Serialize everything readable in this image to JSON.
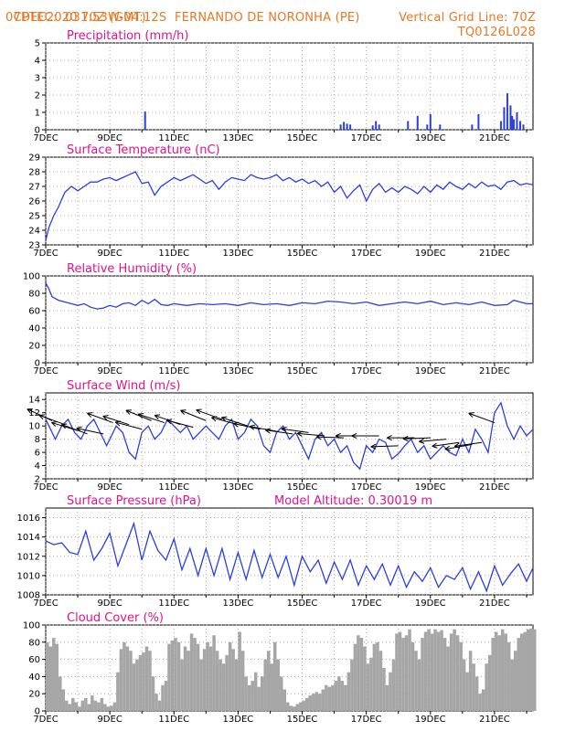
{
  "header": {
    "source": "CPTEC:",
    "coords": "031:53W-04:12S",
    "station": "FERNANDO DE NORONHA (PE)",
    "run": "07DEC2020 70Z (GMT)",
    "grid_line": "Vertical Grid Line: 70Z",
    "code": "TQ0126L028"
  },
  "colors": {
    "header": "#e87722",
    "title": "#e0138c",
    "line": "#2a3fe0",
    "cloud": "#a6a6a6",
    "wind": "#000000"
  },
  "chart_data": [
    {
      "id": "precip",
      "type": "bar",
      "title": "Precipitation (mm/h)",
      "x_tick_labels": [
        "7DEC",
        "9DEC",
        "11DEC",
        "13DEC",
        "15DEC",
        "17DEC",
        "19DEC",
        "21DEC"
      ],
      "x_range_days": [
        7,
        22.2
      ],
      "ylim": [
        0,
        5
      ],
      "yticks": [
        0,
        1,
        2,
        3,
        4,
        5
      ],
      "color": "#2a3fe0",
      "x": [
        10.1,
        16.2,
        16.3,
        16.4,
        16.5,
        17.2,
        17.3,
        17.4,
        18.3,
        18.6,
        18.9,
        19.0,
        19.3,
        20.3,
        20.5,
        21.2,
        21.3,
        21.4,
        21.5,
        21.55,
        21.6,
        21.7,
        21.8,
        21.9
      ],
      "values": [
        1.05,
        0.3,
        0.45,
        0.35,
        0.3,
        0.25,
        0.5,
        0.3,
        0.5,
        0.8,
        0.3,
        0.9,
        0.3,
        0.3,
        0.9,
        0.5,
        1.3,
        2.1,
        1.4,
        0.8,
        0.6,
        1.0,
        0.5,
        0.3
      ]
    },
    {
      "id": "temp",
      "type": "line",
      "title": "Surface Temperature (nC)",
      "x_tick_labels": [
        "7DEC",
        "9DEC",
        "11DEC",
        "13DEC",
        "15DEC",
        "17DEC",
        "19DEC",
        "21DEC"
      ],
      "x_range_days": [
        7,
        22.2
      ],
      "ylim": [
        23,
        29
      ],
      "yticks": [
        23,
        24,
        25,
        26,
        27,
        28,
        29
      ],
      "color": "#2a3fe0",
      "x": [
        7.0,
        7.1,
        7.25,
        7.4,
        7.6,
        7.8,
        8.0,
        8.2,
        8.4,
        8.6,
        8.8,
        9.0,
        9.2,
        9.4,
        9.6,
        9.8,
        10.0,
        10.2,
        10.4,
        10.6,
        10.8,
        11.0,
        11.2,
        11.4,
        11.6,
        11.8,
        12.0,
        12.2,
        12.4,
        12.6,
        12.8,
        13.0,
        13.2,
        13.4,
        13.6,
        13.8,
        14.0,
        14.2,
        14.4,
        14.6,
        14.8,
        15.0,
        15.2,
        15.4,
        15.6,
        15.8,
        16.0,
        16.2,
        16.4,
        16.6,
        16.8,
        17.0,
        17.2,
        17.4,
        17.6,
        17.8,
        18.0,
        18.2,
        18.4,
        18.6,
        18.8,
        19.0,
        19.2,
        19.4,
        19.6,
        19.8,
        20.0,
        20.2,
        20.4,
        20.6,
        20.8,
        21.0,
        21.2,
        21.4,
        21.6,
        21.8,
        22.0,
        22.2
      ],
      "values": [
        23.3,
        24.2,
        25.0,
        25.6,
        26.6,
        27.0,
        26.7,
        27.0,
        27.3,
        27.3,
        27.5,
        27.6,
        27.4,
        27.6,
        27.8,
        28.0,
        27.2,
        27.3,
        26.4,
        27.0,
        27.3,
        27.6,
        27.4,
        27.6,
        27.8,
        27.5,
        27.2,
        27.4,
        26.8,
        27.3,
        27.6,
        27.5,
        27.4,
        27.8,
        27.6,
        27.5,
        27.6,
        27.8,
        27.4,
        27.6,
        27.3,
        27.5,
        27.2,
        27.4,
        27.0,
        27.3,
        26.6,
        27.0,
        26.2,
        26.7,
        27.1,
        26.0,
        26.8,
        27.2,
        26.6,
        26.9,
        26.6,
        27.0,
        26.8,
        26.5,
        27.0,
        26.6,
        27.1,
        26.8,
        27.3,
        27.0,
        26.8,
        27.2,
        26.9,
        27.3,
        27.0,
        27.1,
        26.8,
        27.3,
        27.4,
        27.1,
        27.2,
        27.1
      ]
    },
    {
      "id": "rh",
      "type": "line",
      "title": "Relative Humidity (%)",
      "x_tick_labels": [
        "7DEC",
        "9DEC",
        "11DEC",
        "13DEC",
        "15DEC",
        "17DEC",
        "19DEC",
        "21DEC"
      ],
      "x_range_days": [
        7,
        22.2
      ],
      "ylim": [
        0,
        100
      ],
      "yticks": [
        0,
        20,
        40,
        60,
        80,
        100
      ],
      "color": "#2a3fe0",
      "x": [
        7.0,
        7.1,
        7.2,
        7.4,
        7.6,
        7.8,
        8.0,
        8.2,
        8.4,
        8.6,
        8.8,
        9.0,
        9.2,
        9.4,
        9.6,
        9.8,
        10.0,
        10.2,
        10.4,
        10.6,
        10.8,
        11.0,
        11.4,
        11.8,
        12.2,
        12.6,
        13.0,
        13.4,
        13.8,
        14.2,
        14.6,
        15.0,
        15.4,
        15.8,
        16.2,
        16.6,
        17.0,
        17.4,
        17.8,
        18.2,
        18.6,
        19.0,
        19.4,
        19.8,
        20.2,
        20.6,
        21.0,
        21.4,
        21.6,
        21.8,
        22.0,
        22.2
      ],
      "values": [
        92,
        85,
        76,
        72,
        70,
        68,
        66,
        68,
        64,
        62,
        63,
        66,
        64,
        68,
        69,
        66,
        72,
        68,
        73,
        67,
        66,
        68,
        66,
        68,
        67,
        68,
        66,
        69,
        67,
        68,
        66,
        69,
        68,
        71,
        70,
        68,
        70,
        66,
        68,
        70,
        68,
        71,
        67,
        69,
        67,
        70,
        66,
        67,
        72,
        70,
        68,
        68
      ]
    },
    {
      "id": "wind",
      "type": "line",
      "title": "Surface Wind (m/s)",
      "x_tick_labels": [
        "7DEC",
        "9DEC",
        "11DEC",
        "13DEC",
        "15DEC",
        "17DEC",
        "19DEC",
        "21DEC"
      ],
      "x_range_days": [
        7,
        22.2
      ],
      "ylim": [
        2,
        15
      ],
      "yticks": [
        2,
        4,
        6,
        8,
        10,
        12,
        14
      ],
      "color": "#2a3fe0",
      "x": [
        7.0,
        7.1,
        7.3,
        7.5,
        7.7,
        7.9,
        8.1,
        8.3,
        8.5,
        8.7,
        8.9,
        9.0,
        9.2,
        9.4,
        9.6,
        9.8,
        10.0,
        10.2,
        10.4,
        10.6,
        10.8,
        11.0,
        11.2,
        11.4,
        11.6,
        11.8,
        12.0,
        12.2,
        12.4,
        12.6,
        12.8,
        13.0,
        13.2,
        13.4,
        13.6,
        13.8,
        14.0,
        14.2,
        14.4,
        14.6,
        14.8,
        15.0,
        15.2,
        15.4,
        15.6,
        15.8,
        16.0,
        16.2,
        16.4,
        16.6,
        16.8,
        17.0,
        17.2,
        17.4,
        17.6,
        17.8,
        18.0,
        18.2,
        18.4,
        18.6,
        18.8,
        19.0,
        19.2,
        19.4,
        19.6,
        19.8,
        20.0,
        20.2,
        20.4,
        20.6,
        20.8,
        21.0,
        21.2,
        21.4,
        21.6,
        21.8,
        22.0,
        22.2
      ],
      "values": [
        11,
        10,
        8,
        10,
        11,
        9,
        8,
        10,
        11,
        9,
        7,
        8,
        10,
        9,
        6,
        5,
        9,
        10,
        8,
        9,
        11,
        10,
        9,
        10,
        8,
        9,
        10,
        9,
        8,
        10,
        11,
        8,
        9,
        11,
        10,
        7,
        6,
        9,
        10,
        8,
        9,
        7,
        5,
        8,
        9,
        7,
        8,
        6,
        7,
        4.5,
        3.5,
        7,
        6,
        8,
        7.5,
        5,
        5.8,
        7,
        8,
        6,
        7,
        5,
        6,
        7,
        6,
        5.5,
        8,
        6,
        9.5,
        8,
        6,
        12,
        13.5,
        10,
        8,
        10,
        8.5,
        9.5
      ],
      "arrows": [
        {
          "x": 7.2,
          "y": 10.8,
          "dir": 155
        },
        {
          "x": 7.6,
          "y": 10.2,
          "dir": 160
        },
        {
          "x": 8.0,
          "y": 9.3,
          "dir": 163
        },
        {
          "x": 8.3,
          "y": 8.8,
          "dir": 160
        },
        {
          "x": 8.8,
          "y": 8.8,
          "dir": 168
        },
        {
          "x": 9.1,
          "y": 10.5,
          "dir": 160
        },
        {
          "x": 9.6,
          "y": 10.2,
          "dir": 162
        },
        {
          "x": 10.0,
          "y": 9.5,
          "dir": 165
        },
        {
          "x": 10.3,
          "y": 10.8,
          "dir": 158
        },
        {
          "x": 10.7,
          "y": 10.5,
          "dir": 162
        },
        {
          "x": 11.2,
          "y": 10.2,
          "dir": 160
        },
        {
          "x": 11.6,
          "y": 9.8,
          "dir": 165
        },
        {
          "x": 12.0,
          "y": 10.8,
          "dir": 158
        },
        {
          "x": 12.5,
          "y": 11.0,
          "dir": 160
        },
        {
          "x": 13.0,
          "y": 10.2,
          "dir": 165
        },
        {
          "x": 13.3,
          "y": 10.0,
          "dir": 162
        },
        {
          "x": 13.7,
          "y": 9.5,
          "dir": 168
        },
        {
          "x": 14.2,
          "y": 9.2,
          "dir": 170
        },
        {
          "x": 14.7,
          "y": 8.8,
          "dir": 172
        },
        {
          "x": 15.2,
          "y": 9.0,
          "dir": 172
        },
        {
          "x": 15.7,
          "y": 8.5,
          "dir": 175
        },
        {
          "x": 16.3,
          "y": 8.2,
          "dir": 178
        },
        {
          "x": 16.9,
          "y": 8.5,
          "dir": 180
        },
        {
          "x": 17.4,
          "y": 8.5,
          "dir": 180
        },
        {
          "x": 18.0,
          "y": 7.0,
          "dir": 182
        },
        {
          "x": 18.5,
          "y": 8.2,
          "dir": 180
        },
        {
          "x": 19.0,
          "y": 8.2,
          "dir": 182
        },
        {
          "x": 19.5,
          "y": 8.0,
          "dir": 185
        },
        {
          "x": 19.9,
          "y": 7.5,
          "dir": 188
        },
        {
          "x": 20.3,
          "y": 7.2,
          "dir": 190
        },
        {
          "x": 20.6,
          "y": 7.5,
          "dir": 188
        },
        {
          "x": 21.0,
          "y": 10.5,
          "dir": 160
        }
      ]
    },
    {
      "id": "press",
      "type": "line",
      "title": "Surface Pressure (hPa)",
      "annotation": "Model Altitude: 0.30019 m",
      "x_tick_labels": [
        "7DEC",
        "9DEC",
        "11DEC",
        "13DEC",
        "15DEC",
        "17DEC",
        "19DEC",
        "21DEC"
      ],
      "x_range_days": [
        7,
        22.2
      ],
      "ylim": [
        1008,
        1017
      ],
      "yticks": [
        1008,
        1010,
        1012,
        1014,
        1016
      ],
      "color": "#2a3fe0",
      "x": [
        7.0,
        7.25,
        7.5,
        7.75,
        8.0,
        8.25,
        8.5,
        8.75,
        9.0,
        9.25,
        9.5,
        9.75,
        10.0,
        10.25,
        10.5,
        10.75,
        11.0,
        11.25,
        11.5,
        11.75,
        12.0,
        12.25,
        12.5,
        12.75,
        13.0,
        13.25,
        13.5,
        13.75,
        14.0,
        14.25,
        14.5,
        14.75,
        15.0,
        15.25,
        15.5,
        15.75,
        16.0,
        16.25,
        16.5,
        16.75,
        17.0,
        17.25,
        17.5,
        17.75,
        18.0,
        18.25,
        18.5,
        18.75,
        19.0,
        19.25,
        19.5,
        19.75,
        20.0,
        20.25,
        20.5,
        20.75,
        21.0,
        21.25,
        21.5,
        21.75,
        22.0,
        22.2
      ],
      "values": [
        1013.6,
        1013.2,
        1013.4,
        1012.4,
        1012.2,
        1014.6,
        1011.6,
        1012.8,
        1014.4,
        1011.0,
        1013.2,
        1015.4,
        1011.6,
        1014.6,
        1012.6,
        1011.6,
        1013.8,
        1010.6,
        1012.8,
        1010.0,
        1012.8,
        1010.0,
        1012.8,
        1009.6,
        1012.4,
        1009.6,
        1012.6,
        1009.8,
        1012.2,
        1009.8,
        1012.0,
        1009.0,
        1012.0,
        1010.4,
        1011.6,
        1009.2,
        1011.4,
        1009.6,
        1011.6,
        1009.0,
        1011.0,
        1009.6,
        1011.2,
        1009.0,
        1011.0,
        1008.8,
        1010.4,
        1009.4,
        1010.8,
        1008.8,
        1010.0,
        1009.6,
        1010.8,
        1008.6,
        1010.4,
        1008.4,
        1011.0,
        1009.0,
        1010.2,
        1011.2,
        1009.4,
        1010.8
      ]
    },
    {
      "id": "cloud",
      "type": "area",
      "title": "Cloud Cover (%)",
      "x_tick_labels": [
        "7DEC",
        "9DEC",
        "11DEC",
        "13DEC",
        "15DEC",
        "17DEC",
        "19DEC",
        "21DEC"
      ],
      "x_range_days": [
        7,
        22.2
      ],
      "ylim": [
        0,
        100
      ],
      "yticks": [
        0,
        20,
        40,
        60,
        80,
        100
      ],
      "color": "#a6a6a6",
      "x": [
        7.0,
        7.1,
        7.2,
        7.3,
        7.4,
        7.5,
        7.6,
        7.7,
        7.8,
        7.9,
        8.0,
        8.1,
        8.2,
        8.3,
        8.4,
        8.5,
        8.6,
        8.7,
        8.8,
        8.9,
        9.0,
        9.1,
        9.2,
        9.3,
        9.4,
        9.5,
        9.6,
        9.7,
        9.8,
        9.9,
        10.0,
        10.1,
        10.2,
        10.3,
        10.4,
        10.5,
        10.6,
        10.7,
        10.8,
        10.9,
        11.0,
        11.1,
        11.2,
        11.3,
        11.4,
        11.5,
        11.6,
        11.7,
        11.8,
        11.9,
        12.0,
        12.1,
        12.2,
        12.3,
        12.4,
        12.5,
        12.6,
        12.7,
        12.8,
        12.9,
        13.0,
        13.1,
        13.2,
        13.3,
        13.4,
        13.5,
        13.6,
        13.7,
        13.8,
        13.9,
        14.0,
        14.1,
        14.2,
        14.3,
        14.4,
        14.5,
        14.6,
        14.7,
        14.8,
        14.9,
        15.0,
        15.1,
        15.2,
        15.3,
        15.4,
        15.5,
        15.6,
        15.7,
        15.8,
        15.9,
        16.0,
        16.1,
        16.2,
        16.3,
        16.4,
        16.5,
        16.6,
        16.7,
        16.8,
        16.9,
        17.0,
        17.1,
        17.2,
        17.3,
        17.4,
        17.5,
        17.6,
        17.7,
        17.8,
        17.9,
        18.0,
        18.1,
        18.2,
        18.3,
        18.4,
        18.5,
        18.6,
        18.7,
        18.8,
        18.9,
        19.0,
        19.1,
        19.2,
        19.3,
        19.4,
        19.5,
        19.6,
        19.7,
        19.8,
        19.9,
        20.0,
        20.1,
        20.2,
        20.3,
        20.4,
        20.5,
        20.6,
        20.7,
        20.8,
        20.9,
        21.0,
        21.1,
        21.2,
        21.3,
        21.4,
        21.5,
        21.6,
        21.7,
        21.8,
        21.9,
        22.0,
        22.1,
        22.2
      ],
      "values": [
        80,
        75,
        85,
        78,
        40,
        25,
        12,
        8,
        15,
        10,
        5,
        12,
        15,
        8,
        18,
        12,
        10,
        15,
        8,
        5,
        6,
        10,
        45,
        72,
        80,
        75,
        70,
        55,
        60,
        65,
        68,
        75,
        70,
        40,
        20,
        12,
        30,
        35,
        78,
        82,
        85,
        80,
        60,
        75,
        70,
        90,
        85,
        78,
        60,
        72,
        80,
        75,
        88,
        70,
        60,
        55,
        65,
        80,
        72,
        60,
        92,
        70,
        40,
        30,
        35,
        45,
        28,
        40,
        60,
        70,
        55,
        80,
        60,
        40,
        25,
        10,
        6,
        5,
        8,
        10,
        12,
        15,
        18,
        20,
        22,
        20,
        25,
        30,
        28,
        30,
        35,
        40,
        35,
        30,
        45,
        60,
        78,
        88,
        85,
        75,
        55,
        62,
        78,
        80,
        70,
        50,
        30,
        45,
        60,
        90,
        92,
        85,
        88,
        95,
        80,
        70,
        60,
        85,
        92,
        95,
        90,
        95,
        92,
        94,
        85,
        75,
        90,
        95,
        88,
        80,
        60,
        45,
        70,
        55,
        40,
        20,
        25,
        55,
        65,
        85,
        92,
        88,
        95,
        90,
        80,
        60,
        70,
        85,
        90,
        92,
        95,
        96,
        95
      ]
    }
  ]
}
